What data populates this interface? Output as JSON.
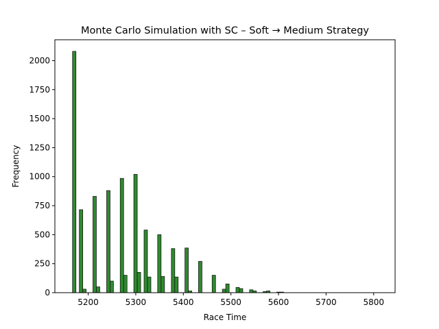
{
  "chart_data": {
    "type": "bar",
    "title": "Monte Carlo Simulation with SC – Soft → Medium Strategy",
    "xlabel": "Race Time",
    "ylabel": "Frequency",
    "xlim": [
      5130,
      5845
    ],
    "ylim": [
      0,
      2180
    ],
    "xticks": [
      5200,
      5300,
      5400,
      5500,
      5600,
      5700,
      5800
    ],
    "yticks": [
      0,
      250,
      500,
      750,
      1000,
      1250,
      1500,
      1750,
      2000
    ],
    "grid": false,
    "bar_color": "#2e8b2e",
    "bar_edge_color": "#1a1a1a",
    "bin_width": 7.15,
    "bins": [
      {
        "x": 5170.7,
        "value": 2080
      },
      {
        "x": 5185.0,
        "value": 715
      },
      {
        "x": 5192.2,
        "value": 30
      },
      {
        "x": 5213.6,
        "value": 830
      },
      {
        "x": 5220.8,
        "value": 50
      },
      {
        "x": 5242.4,
        "value": 880
      },
      {
        "x": 5249.5,
        "value": 100
      },
      {
        "x": 5270.9,
        "value": 985
      },
      {
        "x": 5278.1,
        "value": 150
      },
      {
        "x": 5299.5,
        "value": 1020
      },
      {
        "x": 5306.7,
        "value": 175
      },
      {
        "x": 5321.0,
        "value": 540
      },
      {
        "x": 5328.2,
        "value": 135
      },
      {
        "x": 5349.6,
        "value": 500
      },
      {
        "x": 5356.8,
        "value": 140
      },
      {
        "x": 5378.4,
        "value": 380
      },
      {
        "x": 5385.5,
        "value": 135
      },
      {
        "x": 5406.9,
        "value": 385
      },
      {
        "x": 5414.1,
        "value": 15
      },
      {
        "x": 5435.5,
        "value": 270
      },
      {
        "x": 5464.1,
        "value": 150
      },
      {
        "x": 5485.6,
        "value": 30
      },
      {
        "x": 5492.7,
        "value": 75
      },
      {
        "x": 5514.2,
        "value": 45
      },
      {
        "x": 5521.3,
        "value": 35
      },
      {
        "x": 5542.8,
        "value": 25
      },
      {
        "x": 5549.9,
        "value": 15
      },
      {
        "x": 5571.4,
        "value": 10
      },
      {
        "x": 5578.5,
        "value": 15
      },
      {
        "x": 5599.9,
        "value": 5
      },
      {
        "x": 5607.1,
        "value": 5
      }
    ]
  }
}
